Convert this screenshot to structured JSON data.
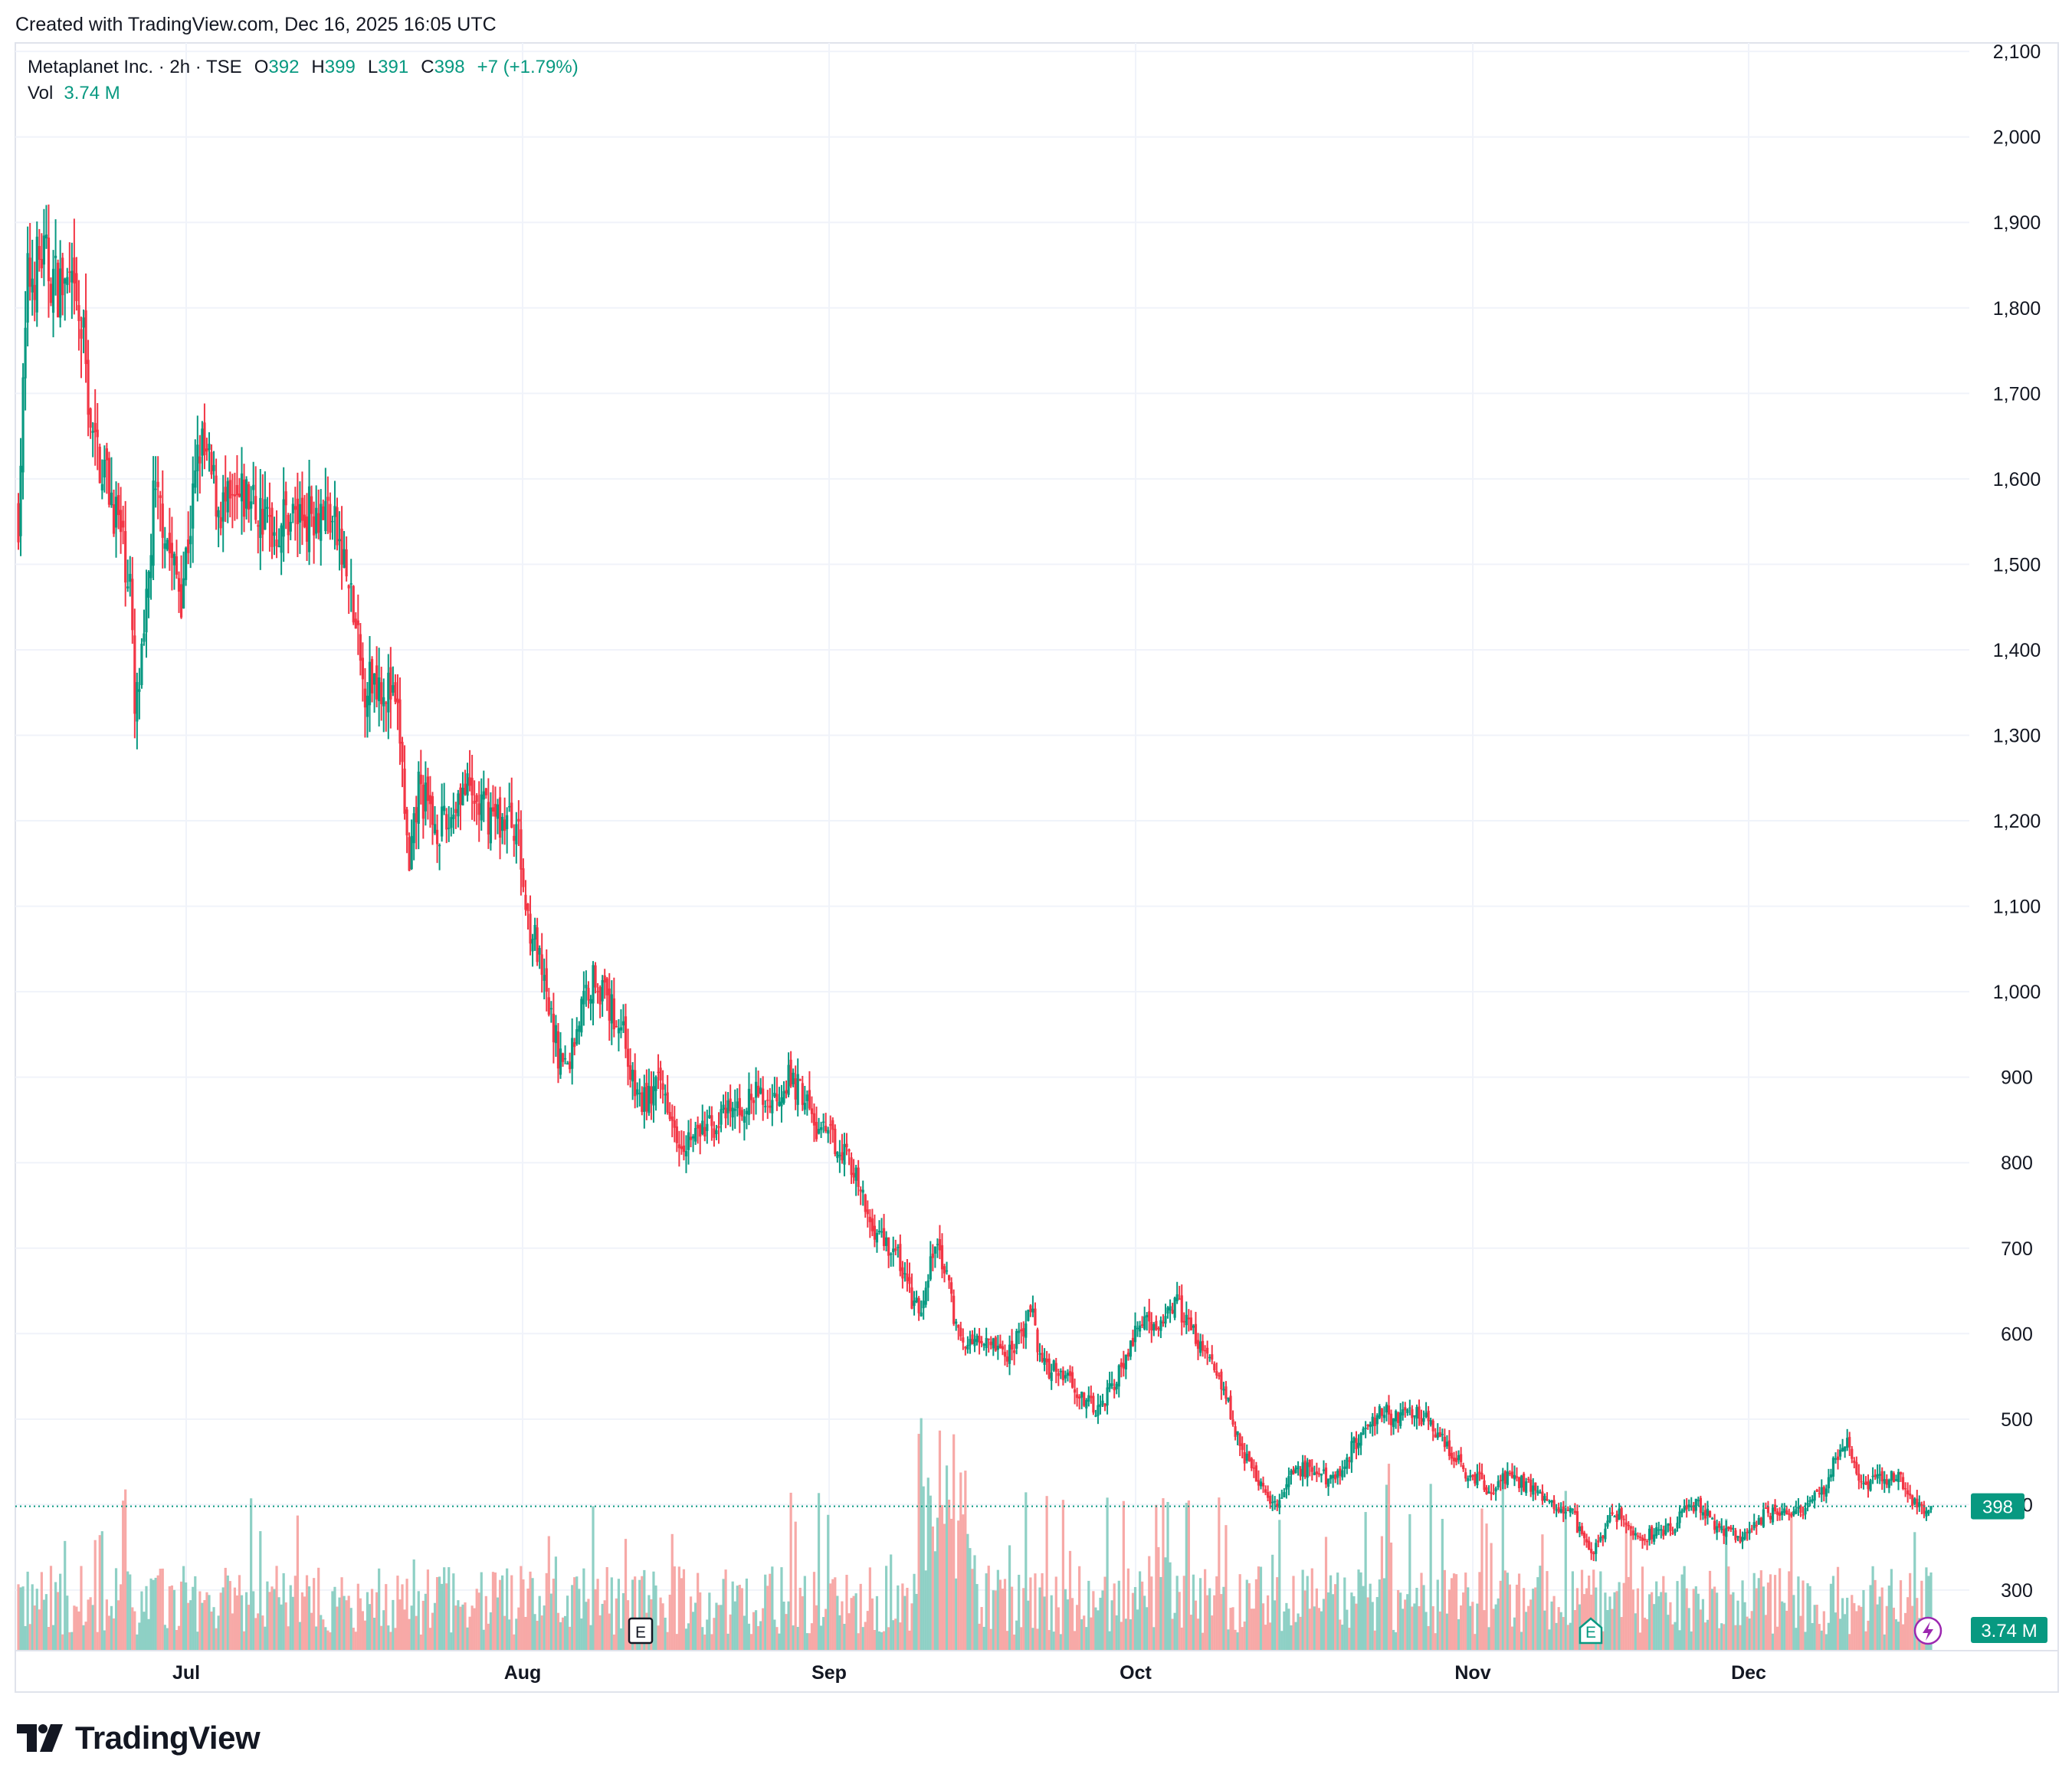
{
  "caption": "Created with TradingView.com, Dec 16, 2025 16:05 UTC",
  "legend": {
    "symbol": "Metaplanet Inc. · 2h · TSE",
    "open_label": "O",
    "open": "392",
    "high_label": "H",
    "high": "399",
    "low_label": "L",
    "low": "391",
    "close_label": "C",
    "close": "398",
    "change": "+7 (+1.79%)",
    "vol_label": "Vol",
    "vol_value": "3.74 M"
  },
  "price_badge": "398",
  "volume_badge": "3.74 M",
  "earnings_markers": [
    {
      "label": "E",
      "date": "Aug 11",
      "style": "outline-dark"
    },
    {
      "label": "E",
      "date": "Nov 13",
      "style": "outline-green"
    }
  ],
  "logo": {
    "text": "TradingView",
    "icon": "tradingview-logo-icon"
  },
  "colors": {
    "up": "#089981",
    "down": "#F23645",
    "vol_up": "#8ED0C5",
    "vol_down": "#F7A9A7",
    "grid": "#F0F3FA",
    "text": "#131722",
    "flash": "#9C27B0"
  },
  "chart_data": {
    "type": "candlestick",
    "interval": "2h",
    "y_axis": {
      "ticks": [
        300,
        400,
        500,
        600,
        700,
        800,
        900,
        1000,
        1100,
        1200,
        1300,
        1400,
        1500,
        1600,
        1700,
        1800,
        1900,
        2000,
        2100
      ],
      "range": [
        230,
        2110
      ],
      "position": "right"
    },
    "x_axis": {
      "labels": [
        "Jul",
        "Aug",
        "Sep",
        "Oct",
        "Nov",
        "Dec"
      ]
    },
    "last_close": 398,
    "grid": true,
    "series": [
      {
        "name": "price",
        "path": [
          [
            0,
            1560
          ],
          [
            2,
            1830
          ],
          [
            5,
            1860
          ],
          [
            8,
            1830
          ],
          [
            11,
            1820
          ],
          [
            14,
            1760
          ],
          [
            16,
            1640
          ],
          [
            18,
            1620
          ],
          [
            21,
            1560
          ],
          [
            24,
            1480
          ],
          [
            25,
            1320
          ],
          [
            27,
            1400
          ],
          [
            29,
            1570
          ],
          [
            31,
            1560
          ],
          [
            33,
            1500
          ],
          [
            35,
            1470
          ],
          [
            37,
            1550
          ],
          [
            39,
            1640
          ],
          [
            41,
            1610
          ],
          [
            43,
            1570
          ],
          [
            46,
            1560
          ],
          [
            49,
            1580
          ],
          [
            52,
            1560
          ],
          [
            55,
            1540
          ],
          [
            58,
            1560
          ],
          [
            61,
            1555
          ],
          [
            64,
            1570
          ],
          [
            67,
            1560
          ],
          [
            70,
            1500
          ],
          [
            72,
            1440
          ],
          [
            74,
            1360
          ],
          [
            77,
            1370
          ],
          [
            80,
            1350
          ],
          [
            82,
            1300
          ],
          [
            84,
            1130
          ],
          [
            86,
            1240
          ],
          [
            89,
            1200
          ],
          [
            92,
            1190
          ],
          [
            95,
            1240
          ],
          [
            98,
            1220
          ],
          [
            101,
            1210
          ],
          [
            104,
            1200
          ],
          [
            107,
            1200
          ],
          [
            109,
            1100
          ],
          [
            111,
            1060
          ],
          [
            113,
            1000
          ],
          [
            116,
            930
          ],
          [
            118,
            910
          ],
          [
            120,
            960
          ],
          [
            122,
            1000
          ],
          [
            124,
            1020
          ],
          [
            127,
            980
          ],
          [
            130,
            960
          ],
          [
            132,
            890
          ],
          [
            134,
            870
          ],
          [
            136,
            880
          ],
          [
            138,
            890
          ],
          [
            140,
            870
          ],
          [
            142,
            830
          ],
          [
            145,
            830
          ],
          [
            148,
            840
          ],
          [
            151,
            850
          ],
          [
            154,
            860
          ],
          [
            157,
            870
          ],
          [
            159,
            880
          ],
          [
            161,
            870
          ],
          [
            163,
            880
          ],
          [
            165,
            900
          ],
          [
            167,
            890
          ],
          [
            169,
            880
          ],
          [
            171,
            840
          ],
          [
            174,
            830
          ],
          [
            177,
            820
          ],
          [
            179,
            800
          ],
          [
            181,
            760
          ],
          [
            183,
            730
          ],
          [
            186,
            710
          ],
          [
            189,
            690
          ],
          [
            192,
            640
          ],
          [
            194,
            620
          ],
          [
            196,
            680
          ],
          [
            198,
            700
          ],
          [
            200,
            650
          ],
          [
            202,
            600
          ],
          [
            204,
            580
          ],
          [
            206,
            600
          ],
          [
            208,
            600
          ],
          [
            210,
            590
          ],
          [
            212,
            570
          ],
          [
            214,
            590
          ],
          [
            216,
            610
          ],
          [
            218,
            620
          ],
          [
            220,
            560
          ],
          [
            223,
            560
          ],
          [
            226,
            550
          ],
          [
            229,
            520
          ],
          [
            232,
            510
          ],
          [
            235,
            540
          ],
          [
            237,
            560
          ],
          [
            239,
            580
          ],
          [
            241,
            620
          ],
          [
            243,
            610
          ],
          [
            245,
            600
          ],
          [
            247,
            630
          ],
          [
            249,
            640
          ],
          [
            251,
            610
          ],
          [
            253,
            600
          ],
          [
            255,
            580
          ],
          [
            257,
            560
          ],
          [
            259,
            540
          ],
          [
            261,
            500
          ],
          [
            263,
            460
          ],
          [
            266,
            430
          ],
          [
            269,
            410
          ],
          [
            271,
            400
          ],
          [
            273,
            430
          ],
          [
            275,
            440
          ],
          [
            278,
            440
          ],
          [
            281,
            430
          ],
          [
            284,
            440
          ],
          [
            287,
            470
          ],
          [
            290,
            490
          ],
          [
            293,
            510
          ],
          [
            296,
            500
          ],
          [
            299,
            510
          ],
          [
            302,
            500
          ],
          [
            305,
            480
          ],
          [
            308,
            460
          ],
          [
            311,
            440
          ],
          [
            314,
            430
          ],
          [
            316,
            410
          ],
          [
            319,
            430
          ],
          [
            322,
            430
          ],
          [
            325,
            420
          ],
          [
            328,
            410
          ],
          [
            331,
            400
          ],
          [
            334,
            390
          ],
          [
            336,
            360
          ],
          [
            338,
            345
          ],
          [
            340,
            360
          ],
          [
            342,
            380
          ],
          [
            344,
            390
          ],
          [
            346,
            370
          ],
          [
            349,
            360
          ],
          [
            352,
            370
          ],
          [
            355,
            370
          ],
          [
            358,
            390
          ],
          [
            361,
            400
          ],
          [
            364,
            380
          ],
          [
            367,
            370
          ],
          [
            370,
            360
          ],
          [
            373,
            380
          ],
          [
            376,
            390
          ],
          [
            379,
            395
          ],
          [
            382,
            390
          ],
          [
            385,
            400
          ],
          [
            388,
            420
          ],
          [
            391,
            460
          ],
          [
            393,
            480
          ],
          [
            395,
            430
          ],
          [
            397,
            420
          ],
          [
            399,
            440
          ],
          [
            401,
            430
          ],
          [
            404,
            435
          ],
          [
            406,
            410
          ],
          [
            409,
            395
          ],
          [
            411,
            398
          ]
        ]
      },
      {
        "name": "volume"
      }
    ]
  }
}
